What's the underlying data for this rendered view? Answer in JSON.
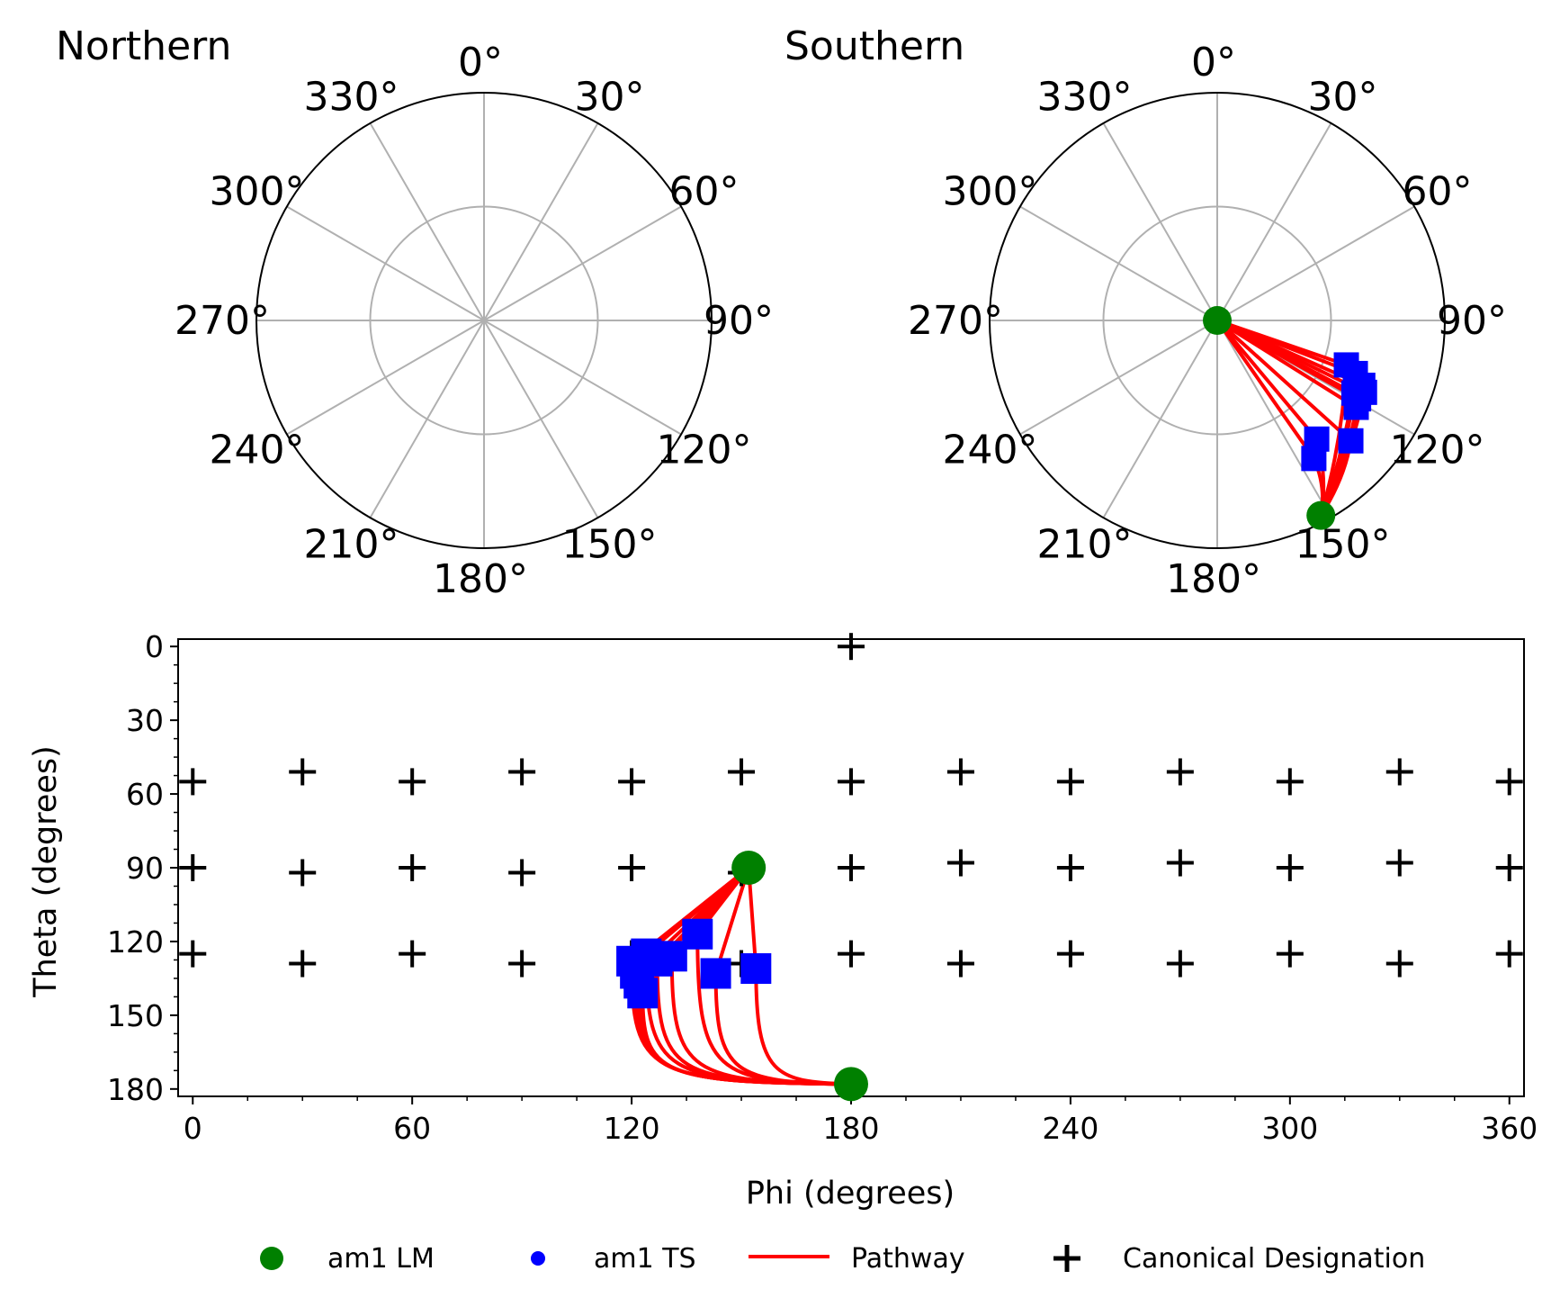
{
  "chart_data": [
    {
      "type": "polar",
      "title": "Northern",
      "angle_ticks": [
        "0°",
        "30°",
        "60°",
        "90°",
        "120°",
        "150°",
        "180°",
        "210°",
        "240°",
        "270°",
        "300°",
        "330°"
      ],
      "grid": true,
      "lm": [],
      "ts": [],
      "pathways": []
    },
    {
      "type": "polar",
      "title": "Southern",
      "angle_ticks": [
        "0°",
        "30°",
        "60°",
        "90°",
        "120°",
        "150°",
        "180°",
        "210°",
        "240°",
        "270°",
        "300°",
        "330°"
      ],
      "grid": true,
      "lm": [
        {
          "phi": 0,
          "r": 0
        },
        {
          "phi": 152,
          "r": 0.97
        }
      ],
      "ts": [
        {
          "phi": 109,
          "r": 0.6
        },
        {
          "phi": 111,
          "r": 0.65
        },
        {
          "phi": 114,
          "r": 0.7
        },
        {
          "phi": 116,
          "r": 0.72
        },
        {
          "phi": 119,
          "r": 0.71
        },
        {
          "phi": 122,
          "r": 0.72
        },
        {
          "phi": 118,
          "r": 0.68
        },
        {
          "phi": 140,
          "r": 0.68
        },
        {
          "phi": 145,
          "r": 0.74
        },
        {
          "phi": 132,
          "r": 0.79
        }
      ],
      "pathways": [
        {
          "from": 0,
          "via": 0,
          "to": 1
        },
        {
          "from": 0,
          "via": 1,
          "to": 1
        },
        {
          "from": 0,
          "via": 2,
          "to": 1
        },
        {
          "from": 0,
          "via": 3,
          "to": 1
        },
        {
          "from": 0,
          "via": 4,
          "to": 1
        },
        {
          "from": 0,
          "via": 5,
          "to": 1
        },
        {
          "from": 0,
          "via": 6,
          "to": 1
        },
        {
          "from": 0,
          "via": 7,
          "to": 1
        },
        {
          "from": 0,
          "via": 8,
          "to": 1
        },
        {
          "from": 0,
          "via": 9,
          "to": 1
        }
      ]
    },
    {
      "type": "scatter",
      "xlabel": "Phi (degrees)",
      "ylabel": "Theta (degrees)",
      "xlim": [
        -4,
        364
      ],
      "ylim": [
        183,
        -3
      ],
      "xticks": [
        0,
        60,
        120,
        180,
        240,
        300,
        360
      ],
      "yticks": [
        0,
        30,
        60,
        90,
        120,
        150,
        180
      ],
      "lm": [
        {
          "phi": 152,
          "theta": 90
        },
        {
          "phi": 180,
          "theta": 178
        }
      ],
      "ts": [
        {
          "phi": 120,
          "theta": 128
        },
        {
          "phi": 121,
          "theta": 133
        },
        {
          "phi": 122,
          "theta": 137
        },
        {
          "phi": 123,
          "theta": 141
        },
        {
          "phi": 124,
          "theta": 125
        },
        {
          "phi": 127,
          "theta": 128
        },
        {
          "phi": 131,
          "theta": 126
        },
        {
          "phi": 138,
          "theta": 117
        },
        {
          "phi": 143,
          "theta": 133
        },
        {
          "phi": 154,
          "theta": 131
        }
      ],
      "canonical": [
        {
          "phi": 180,
          "theta": 0
        },
        {
          "phi": 0,
          "theta": 55
        },
        {
          "phi": 30,
          "theta": 51
        },
        {
          "phi": 60,
          "theta": 55
        },
        {
          "phi": 90,
          "theta": 51
        },
        {
          "phi": 120,
          "theta": 55
        },
        {
          "phi": 150,
          "theta": 51
        },
        {
          "phi": 180,
          "theta": 55
        },
        {
          "phi": 210,
          "theta": 51
        },
        {
          "phi": 240,
          "theta": 55
        },
        {
          "phi": 270,
          "theta": 51
        },
        {
          "phi": 300,
          "theta": 55
        },
        {
          "phi": 330,
          "theta": 51
        },
        {
          "phi": 360,
          "theta": 55
        },
        {
          "phi": 0,
          "theta": 90
        },
        {
          "phi": 30,
          "theta": 92
        },
        {
          "phi": 60,
          "theta": 90
        },
        {
          "phi": 90,
          "theta": 92
        },
        {
          "phi": 120,
          "theta": 90
        },
        {
          "phi": 150,
          "theta": 92
        },
        {
          "phi": 180,
          "theta": 90
        },
        {
          "phi": 210,
          "theta": 88
        },
        {
          "phi": 240,
          "theta": 90
        },
        {
          "phi": 270,
          "theta": 88
        },
        {
          "phi": 300,
          "theta": 90
        },
        {
          "phi": 330,
          "theta": 88
        },
        {
          "phi": 360,
          "theta": 90
        },
        {
          "phi": 0,
          "theta": 125
        },
        {
          "phi": 30,
          "theta": 129
        },
        {
          "phi": 60,
          "theta": 125
        },
        {
          "phi": 90,
          "theta": 129
        },
        {
          "phi": 120,
          "theta": 125
        },
        {
          "phi": 150,
          "theta": 129
        },
        {
          "phi": 180,
          "theta": 125
        },
        {
          "phi": 210,
          "theta": 129
        },
        {
          "phi": 240,
          "theta": 125
        },
        {
          "phi": 270,
          "theta": 129
        },
        {
          "phi": 300,
          "theta": 125
        },
        {
          "phi": 330,
          "theta": 129
        },
        {
          "phi": 360,
          "theta": 125
        }
      ],
      "pathways": [
        {
          "ts": 0
        },
        {
          "ts": 1
        },
        {
          "ts": 2
        },
        {
          "ts": 3
        },
        {
          "ts": 4
        },
        {
          "ts": 5
        },
        {
          "ts": 6
        },
        {
          "ts": 7
        },
        {
          "ts": 8
        },
        {
          "ts": 9
        }
      ]
    }
  ],
  "legend": {
    "items": [
      {
        "label": "am1 LM",
        "marker": "circle",
        "color": "#008000"
      },
      {
        "label": "am1 TS",
        "marker": "circle-small",
        "color": "#0000ff"
      },
      {
        "label": "Pathway",
        "marker": "line",
        "color": "#ff0000"
      },
      {
        "label": "Canonical Designation",
        "marker": "plus",
        "color": "#000000"
      }
    ],
    "placement": "bottom"
  },
  "colors": {
    "lm": "#008000",
    "ts": "#0000ff",
    "pathway": "#ff0000",
    "canonical": "#000000",
    "grid": "#b0b0b0"
  }
}
